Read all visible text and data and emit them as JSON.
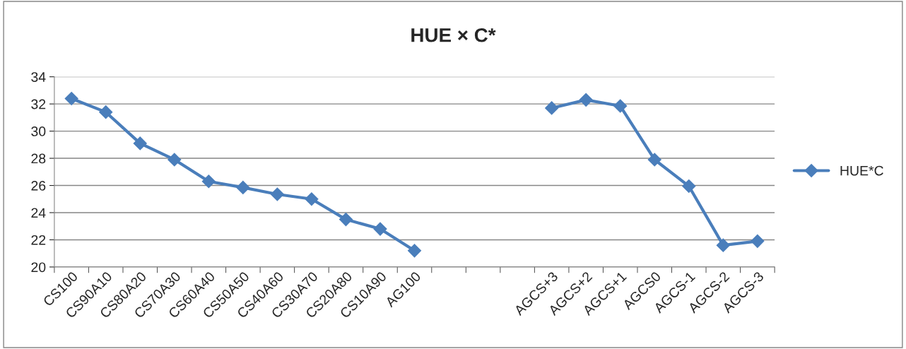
{
  "chart_data": {
    "type": "line",
    "title": "HUE × C*",
    "categories": [
      "CS100",
      "CS90A10",
      "CS80A20",
      "CS70A30",
      "CS60A40",
      "CS50A50",
      "CS40A60",
      "CS30A70",
      "CS20A80",
      "CS10A90",
      "AG100",
      null,
      null,
      null,
      "AGCS+3",
      "AGCS+2",
      "AGCS+1",
      "AGCS0",
      "AGCS-1",
      "AGCS-2",
      "AGCS-3"
    ],
    "series": [
      {
        "name": "HUE*C",
        "color": "#4a7ebb",
        "values": [
          32.4,
          31.4,
          29.1,
          27.9,
          26.3,
          25.85,
          25.35,
          25.0,
          23.5,
          22.8,
          21.2,
          null,
          null,
          null,
          31.7,
          32.3,
          31.85,
          27.9,
          25.95,
          21.6,
          21.9
        ]
      }
    ],
    "ylim": [
      20,
      34
    ],
    "yticks": [
      20,
      22,
      24,
      26,
      28,
      30,
      32,
      34
    ],
    "grid": "y",
    "legend": "right",
    "marker": "diamond",
    "line_style": "solid"
  }
}
